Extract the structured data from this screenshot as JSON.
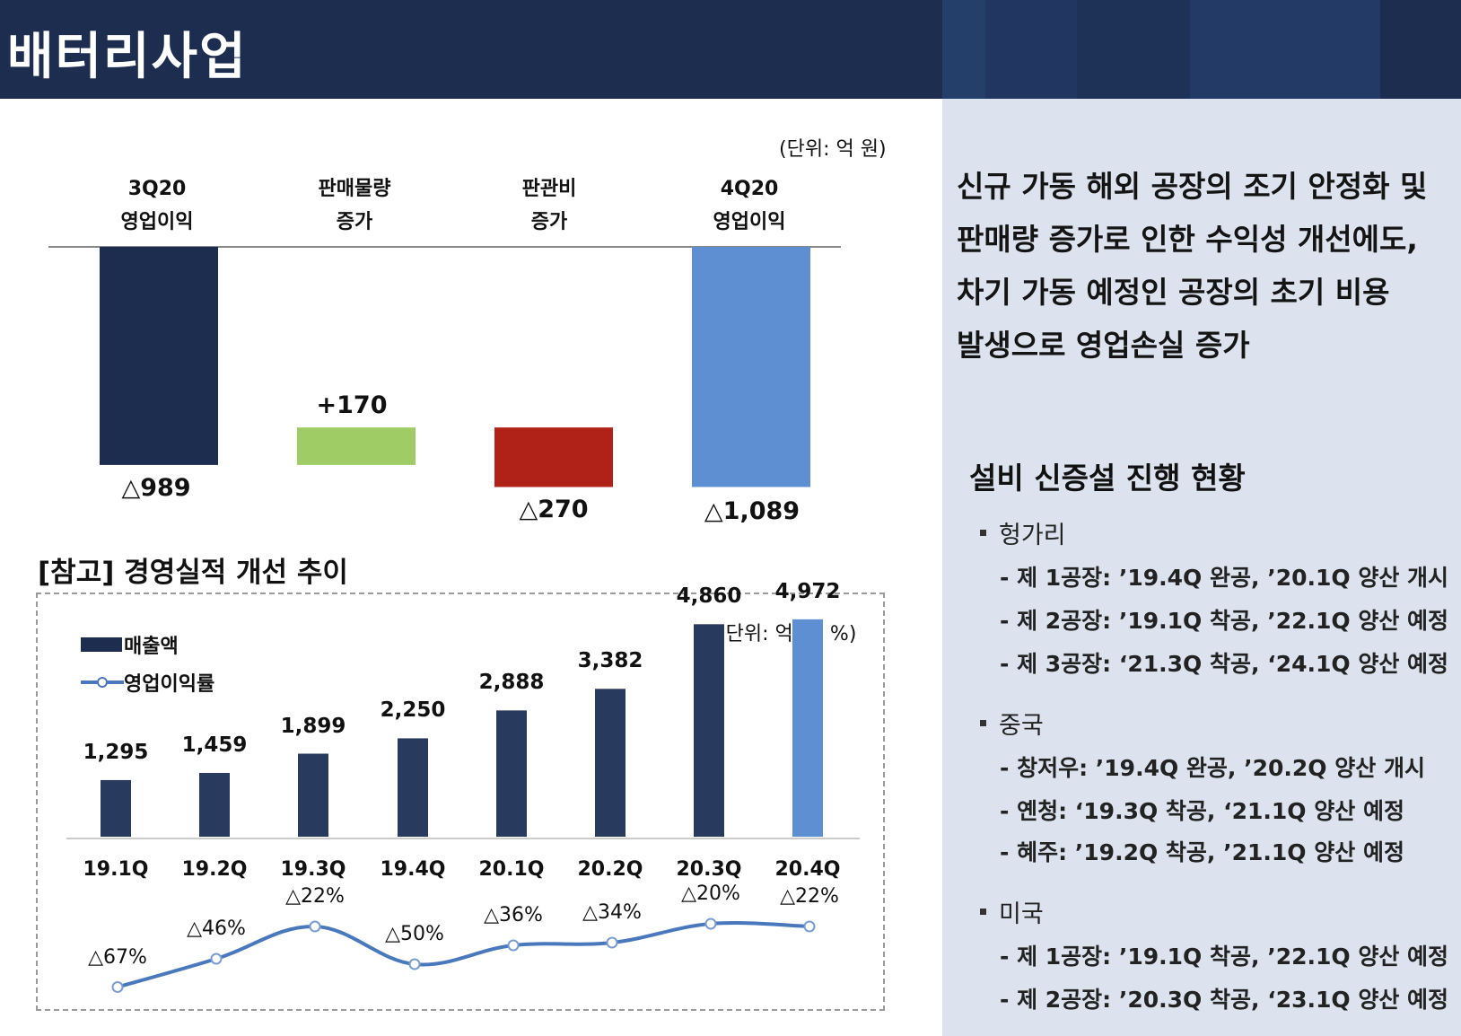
{
  "header": {
    "title": "배터리사업"
  },
  "colors": {
    "navy": "#1d2d4f",
    "bar_navy": "#283a5e",
    "light_blue": "#5f8fd3",
    "green": "#9fcc64",
    "red": "#b02118",
    "panel": "#dce3ee"
  },
  "waterfall": {
    "unit": "(단위: 억 원)",
    "categories": [
      {
        "line1": "3Q20",
        "line2": "영업이익"
      },
      {
        "line1": "판매물량",
        "line2": "증가"
      },
      {
        "line1": "판관비",
        "line2": "증가"
      },
      {
        "line1": "4Q20",
        "line2": "영업이익"
      }
    ],
    "labels": [
      "△989",
      "+170",
      "△270",
      "△1,089"
    ]
  },
  "reference": {
    "title": "[참고] 경영실적 개선 추이",
    "unit": "(단위: 억 원, %)",
    "legend": {
      "revenue": "매출액",
      "margin": "영업이익률"
    }
  },
  "chart_data": [
    {
      "type": "bar",
      "title": "",
      "categories": [
        "3Q20 영업이익",
        "판매물량 증가",
        "판관비 증가",
        "4Q20 영업이익"
      ],
      "values": [
        -989,
        170,
        -270,
        -1089
      ],
      "value_labels": [
        "△989",
        "+170",
        "△270",
        "△1,089"
      ],
      "unit": "억 원",
      "style": "waterfall"
    },
    {
      "type": "bar",
      "categories": [
        "19.1Q",
        "19.2Q",
        "19.3Q",
        "19.4Q",
        "20.1Q",
        "20.2Q",
        "20.3Q",
        "20.4Q"
      ],
      "series": [
        {
          "name": "매출액",
          "values": [
            1295,
            1459,
            1899,
            2250,
            2888,
            3382,
            4860,
            4972
          ],
          "labels": [
            "1,295",
            "1,459",
            "1,899",
            "2,250",
            "2,888",
            "3,382",
            "4,860",
            "4,972"
          ]
        },
        {
          "name": "영업이익률",
          "type": "line",
          "values": [
            -67,
            -46,
            -22,
            -50,
            -36,
            -34,
            -20,
            -22
          ],
          "labels": [
            "△67%",
            "△46%",
            "△22%",
            "△50%",
            "△36%",
            "△34%",
            "△20%",
            "△22%"
          ]
        }
      ],
      "unit": "억 원, %"
    }
  ],
  "summary": {
    "lines": [
      "신규 가동 해외 공장의 조기 안정화 및",
      "판매량 증가로 인한 수익성 개선에도,",
      "차기 가동 예정인 공장의 초기 비용",
      "발생으로 영업손실 증가"
    ]
  },
  "facilities": {
    "title": "설비 신증설 진행 현황",
    "regions": [
      {
        "name": "헝가리",
        "items": [
          "- 제 1공장: ’19.4Q 완공, ’20.1Q 양산 개시",
          "- 제 2공장: ’19.1Q 착공, ’22.1Q 양산 예정",
          "- 제 3공장: ‘21.3Q 착공, ‘24.1Q 양산 예정"
        ]
      },
      {
        "name": "중국",
        "items": [
          "- 창저우: ’19.4Q 완공, ’20.2Q 양산 개시",
          "- 옌청: ‘19.3Q 착공, ‘21.1Q 양산 예정",
          "- 혜주: ’19.2Q 착공, ’21.1Q 양산 예정"
        ]
      },
      {
        "name": "미국",
        "items": [
          "- 제 1공장: ’19.1Q 착공, ’22.1Q 양산 예정",
          "- 제 2공장: ’20.3Q 착공, ‘23.1Q 양산 예정"
        ]
      }
    ]
  }
}
